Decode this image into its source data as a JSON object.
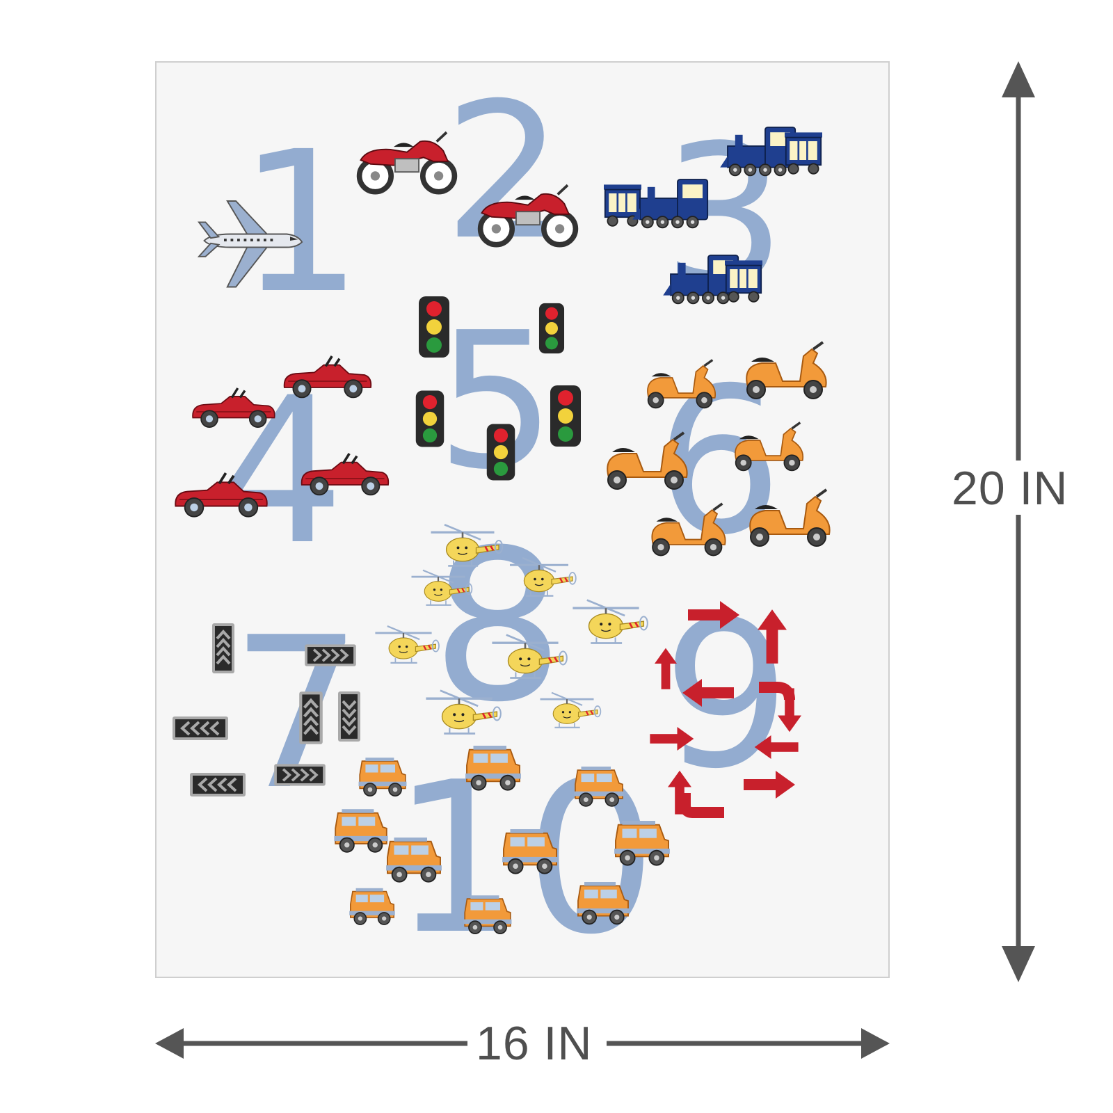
{
  "dimensions": {
    "width_label": "16 IN",
    "height_label": "20 IN"
  },
  "numbers": [
    "1",
    "2",
    "3",
    "4",
    "5",
    "6",
    "7",
    "8",
    "9",
    "10"
  ],
  "colors": {
    "poster_bg": "#f6f6f6",
    "numeral": "#93acd0",
    "arrow_gray": "#555555",
    "red": "#c8202c",
    "orange": "#f29a3a",
    "yellow": "#f4d65a",
    "navy": "#1f3f8f",
    "chevron_gray": "#a9a9a9"
  },
  "vehicles": {
    "one": "airplane-icon",
    "two": "motorcycle-icon",
    "three": "train-icon",
    "four": "convertible-car-icon",
    "five": "traffic-light-icon",
    "six": "scooter-icon",
    "seven": "chevron-sign-icon",
    "eight": "helicopter-icon",
    "nine": "red-arrow-icon",
    "ten": "suv-car-icon"
  }
}
